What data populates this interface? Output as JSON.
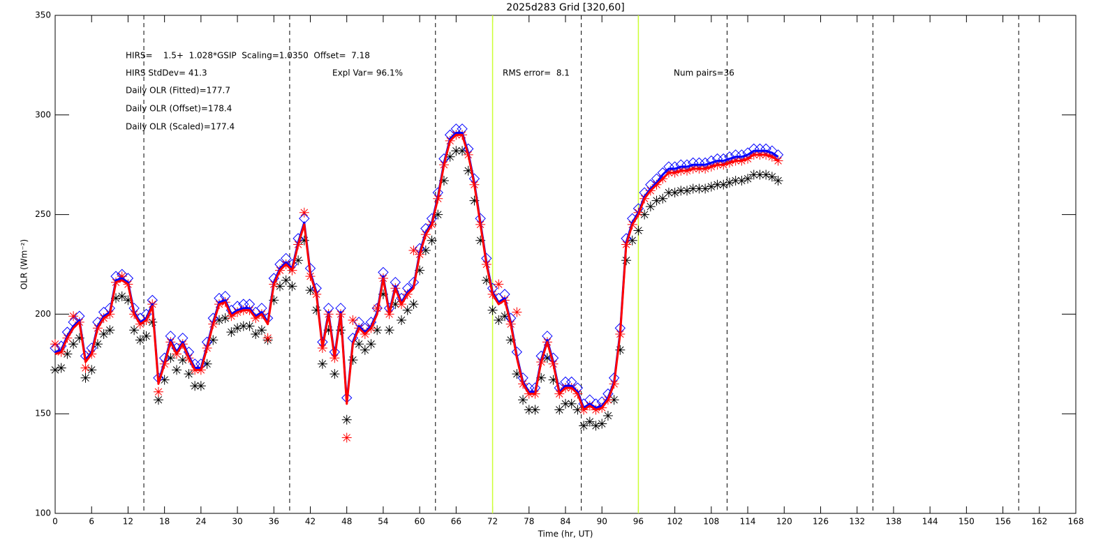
{
  "chart_data": {
    "type": "scatter",
    "title": "2025d283 Grid [320,60]",
    "x_label": "Time (hr, UT)",
    "y_label": "OLR (Wm⁻²)",
    "annotations": [
      "HIRS=    1.5+  1.028*GSIP  Scaling=1.0350  Offset=  7.18",
      "HIRS StdDev= 41.3",
      "Expl Var= 96.1%",
      "RMS error=  8.1",
      "Num pairs=36",
      "Daily OLR (Fitted)=177.7",
      "Daily OLR (Offset)=178.4",
      "Daily OLR (Scaled)=177.4"
    ],
    "xlim": [
      0,
      168
    ],
    "ylim": [
      100,
      350
    ],
    "xticks": [
      0,
      6,
      12,
      18,
      24,
      30,
      36,
      42,
      48,
      54,
      60,
      66,
      72,
      78,
      84,
      90,
      96,
      102,
      108,
      114,
      120,
      126,
      132,
      138,
      144,
      150,
      156,
      162,
      168
    ],
    "yticks": [
      100,
      150,
      200,
      250,
      300,
      350
    ],
    "dashed_lines": {
      "color": "#000000",
      "x": [
        14.6,
        38.6,
        62.6,
        86.6,
        110.6,
        134.6,
        158.6
      ]
    },
    "highlight_lines": {
      "color": "#ccff33",
      "x": [
        72,
        96
      ]
    },
    "x": [
      0,
      1,
      2,
      3,
      4,
      5,
      6,
      7,
      8,
      9,
      10,
      11,
      12,
      13,
      14,
      15,
      16,
      17,
      18,
      19,
      20,
      21,
      22,
      23,
      24,
      25,
      26,
      27,
      28,
      29,
      30,
      31,
      32,
      33,
      34,
      35,
      36,
      37,
      38,
      39,
      40,
      41,
      42,
      43,
      44,
      45,
      46,
      47,
      48,
      49,
      50,
      51,
      52,
      53,
      54,
      55,
      56,
      57,
      58,
      59,
      60,
      61,
      62,
      63,
      64,
      65,
      66,
      67,
      68,
      69,
      70,
      71,
      72,
      73,
      74,
      75,
      76,
      77,
      78,
      79,
      80,
      81,
      82,
      83,
      84,
      85,
      86,
      87,
      88,
      89,
      90,
      91,
      92,
      93,
      94,
      95,
      96,
      97,
      98,
      99,
      100,
      101,
      102,
      103,
      104,
      105,
      106,
      107,
      108,
      109,
      110,
      111,
      112,
      113,
      114,
      115,
      116,
      117,
      118,
      119
    ],
    "series": [
      {
        "marker": "asterisk",
        "color": "#000000",
        "values": [
          172,
          173,
          180,
          185,
          188,
          168,
          172,
          185,
          190,
          192,
          208,
          209,
          207,
          192,
          187,
          189,
          196,
          157,
          167,
          178,
          172,
          177,
          170,
          164,
          164,
          175,
          187,
          197,
          198,
          191,
          193,
          194,
          194,
          190,
          192,
          187,
          207,
          214,
          217,
          214,
          227,
          237,
          212,
          202,
          175,
          192,
          170,
          192,
          147,
          177,
          185,
          182,
          185,
          192,
          210,
          192,
          205,
          197,
          202,
          205,
          222,
          232,
          237,
          250,
          267,
          279,
          282,
          282,
          272,
          257,
          237,
          217,
          202,
          197,
          199,
          187,
          170,
          157,
          152,
          152,
          168,
          178,
          167,
          152,
          155,
          155,
          152,
          144,
          146,
          144,
          145,
          149,
          157,
          182,
          227,
          237,
          242,
          250,
          254,
          257,
          258,
          261,
          261,
          262,
          262,
          263,
          263,
          263,
          264,
          265,
          265,
          266,
          267,
          267,
          268,
          270,
          270,
          270,
          269,
          267
        ]
      },
      {
        "marker": "diamond",
        "color": "#0000ff",
        "values": [
          183,
          184,
          191,
          196,
          199,
          179,
          183,
          196,
          201,
          203,
          219,
          220,
          218,
          203,
          198,
          200,
          207,
          168,
          178,
          189,
          183,
          188,
          181,
          175,
          175,
          186,
          198,
          208,
          209,
          202,
          204,
          205,
          205,
          201,
          203,
          198,
          218,
          225,
          228,
          225,
          238,
          248,
          223,
          213,
          186,
          203,
          181,
          203,
          158,
          188,
          196,
          193,
          196,
          203,
          221,
          203,
          216,
          208,
          213,
          216,
          233,
          243,
          248,
          261,
          278,
          290,
          293,
          293,
          283,
          268,
          248,
          228,
          213,
          208,
          210,
          198,
          181,
          168,
          163,
          163,
          179,
          189,
          178,
          163,
          166,
          166,
          163,
          155,
          157,
          155,
          156,
          160,
          168,
          193,
          238,
          248,
          253,
          261,
          265,
          268,
          271,
          274,
          274,
          275,
          275,
          276,
          276,
          276,
          277,
          278,
          278,
          279,
          280,
          280,
          281,
          283,
          283,
          283,
          282,
          280
        ]
      },
      {
        "marker": "asterisk",
        "color": "#ff0000",
        "values": [
          185,
          181,
          188,
          199,
          196,
          173,
          180,
          193,
          198,
          200,
          216,
          219,
          215,
          200,
          195,
          197,
          205,
          161,
          175,
          186,
          180,
          185,
          178,
          172,
          172,
          183,
          195,
          205,
          206,
          199,
          201,
          202,
          202,
          198,
          200,
          188,
          215,
          222,
          225,
          222,
          235,
          251,
          219,
          210,
          183,
          200,
          178,
          200,
          138,
          197,
          193,
          190,
          193,
          203,
          218,
          200,
          213,
          205,
          210,
          232,
          230,
          240,
          245,
          258,
          275,
          287,
          290,
          290,
          280,
          265,
          245,
          225,
          210,
          215,
          207,
          195,
          201,
          165,
          160,
          160,
          176,
          186,
          175,
          160,
          163,
          163,
          160,
          152,
          154,
          152,
          153,
          157,
          165,
          190,
          235,
          245,
          251,
          258,
          262,
          265,
          268,
          271,
          271,
          272,
          272,
          273,
          273,
          273,
          274,
          275,
          275,
          276,
          277,
          277,
          278,
          280,
          280,
          280,
          279,
          277
        ]
      },
      {
        "marker": "line",
        "color": "#0000ff",
        "values": [
          181,
          182,
          189,
          194,
          197,
          177,
          181,
          194,
          199,
          201,
          217,
          218,
          216,
          201,
          196,
          198,
          205,
          166,
          176,
          187,
          181,
          186,
          179,
          173,
          173,
          184,
          196,
          206,
          207,
          200,
          202,
          203,
          203,
          199,
          201,
          196,
          216,
          223,
          226,
          223,
          236,
          246,
          221,
          211,
          184,
          201,
          179,
          201,
          156,
          186,
          194,
          191,
          194,
          201,
          219,
          201,
          214,
          206,
          211,
          214,
          231,
          241,
          246,
          259,
          276,
          288,
          291,
          291,
          281,
          266,
          246,
          226,
          211,
          206,
          208,
          196,
          179,
          166,
          161,
          161,
          177,
          187,
          176,
          161,
          164,
          164,
          161,
          153,
          155,
          153,
          154,
          158,
          166,
          191,
          236,
          246,
          251,
          259,
          263,
          266,
          270,
          273,
          273,
          274,
          274,
          275,
          275,
          275,
          276,
          277,
          277,
          278,
          279,
          279,
          280,
          282,
          282,
          282,
          281,
          279
        ]
      },
      {
        "marker": "line",
        "color": "#ff0000",
        "values": [
          180,
          181,
          188,
          193,
          196,
          176,
          180,
          193,
          198,
          200,
          216,
          217,
          215,
          200,
          195,
          197,
          204,
          165,
          175,
          186,
          180,
          185,
          178,
          172,
          172,
          183,
          195,
          205,
          206,
          199,
          201,
          202,
          202,
          198,
          200,
          195,
          215,
          222,
          225,
          222,
          235,
          245,
          220,
          210,
          183,
          200,
          178,
          200,
          155,
          185,
          193,
          190,
          193,
          200,
          218,
          200,
          213,
          205,
          210,
          213,
          230,
          240,
          245,
          258,
          275,
          287,
          290,
          290,
          280,
          265,
          245,
          225,
          210,
          205,
          207,
          195,
          178,
          165,
          160,
          160,
          176,
          186,
          175,
          160,
          163,
          163,
          160,
          152,
          154,
          152,
          153,
          157,
          165,
          190,
          235,
          245,
          250,
          258,
          262,
          265,
          268,
          271,
          271,
          272,
          272,
          273,
          273,
          273,
          274,
          275,
          275,
          276,
          277,
          277,
          278,
          280,
          280,
          280,
          279,
          277
        ]
      }
    ]
  }
}
